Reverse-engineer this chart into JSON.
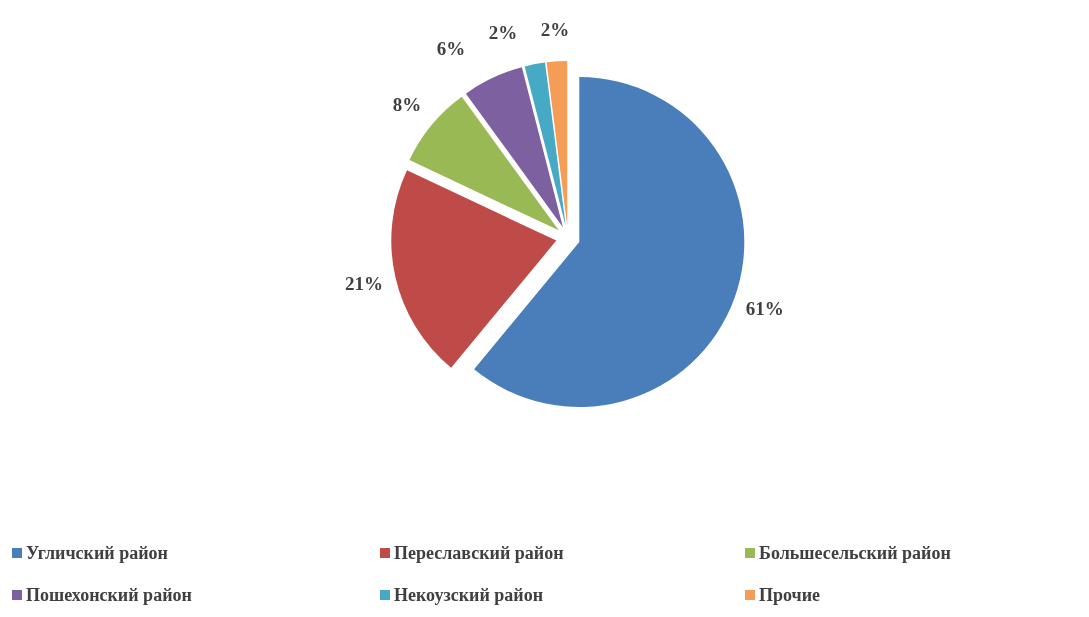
{
  "chart_data": {
    "type": "pie",
    "categories": [
      "Угличский район",
      "Переславский район",
      "Большесельский район",
      "Пошехонский район",
      "Некоузский район",
      "Прочие"
    ],
    "values": [
      61,
      21,
      8,
      6,
      2,
      2
    ],
    "colors": [
      "#4a7ebb",
      "#be4b48",
      "#98b954",
      "#7d60a0",
      "#46aac5",
      "#f59d56"
    ],
    "value_labels": [
      "61%",
      "21%",
      "8%",
      "6%",
      "2%",
      "2%"
    ],
    "legend": "bottom"
  }
}
